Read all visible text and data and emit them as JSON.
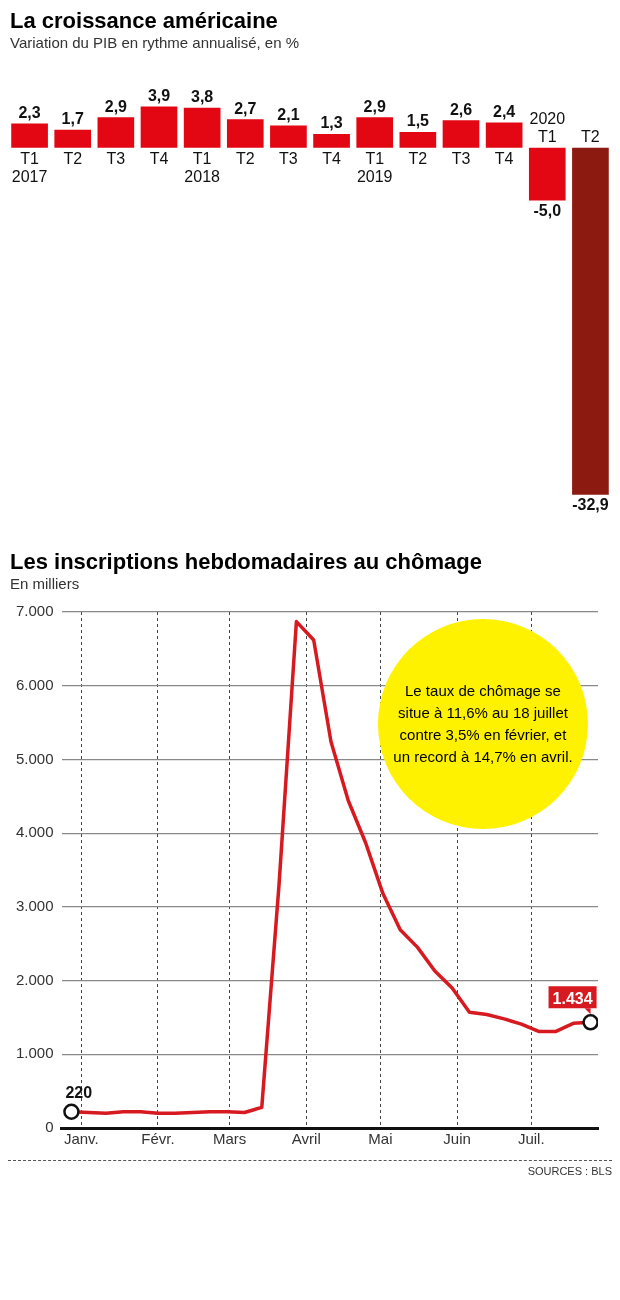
{
  "chart_data": [
    {
      "type": "bar",
      "title": "La croissance américaine",
      "subtitle": "Variation du PIB en rythme annualisé, en %",
      "categories": [
        "T1 2017",
        "T2",
        "T3",
        "T4",
        "T1 2018",
        "T2",
        "T3",
        "T4",
        "T1 2019",
        "T2",
        "T3",
        "T4",
        "2020 T1",
        "T2"
      ],
      "values": [
        2.3,
        1.7,
        2.9,
        3.9,
        3.8,
        2.7,
        2.1,
        1.3,
        2.9,
        1.5,
        2.6,
        2.4,
        -5.0,
        -32.9
      ],
      "colors": [
        "#e30613",
        "#e30613",
        "#e30613",
        "#e30613",
        "#e30613",
        "#e30613",
        "#e30613",
        "#e30613",
        "#e30613",
        "#e30613",
        "#e30613",
        "#e30613",
        "#e30613",
        "#8c1a10"
      ],
      "value_labels": [
        "2,3",
        "1,7",
        "2,9",
        "3,9",
        "3,8",
        "2,7",
        "2,1",
        "1,3",
        "2,9",
        "1,5",
        "2,6",
        "2,4",
        "-5,0",
        "-32,9"
      ]
    },
    {
      "type": "line",
      "title": "Les inscriptions hebdomadaires au chômage",
      "subtitle": "En milliers",
      "x": [
        "2019-12-28",
        "2020-01-04",
        "2020-01-11",
        "2020-01-18",
        "2020-01-25",
        "2020-02-01",
        "2020-02-08",
        "2020-02-15",
        "2020-02-22",
        "2020-02-29",
        "2020-03-07",
        "2020-03-14",
        "2020-03-21",
        "2020-03-28",
        "2020-04-04",
        "2020-04-11",
        "2020-04-18",
        "2020-04-25",
        "2020-05-02",
        "2020-05-09",
        "2020-05-16",
        "2020-05-23",
        "2020-05-30",
        "2020-06-06",
        "2020-06-13",
        "2020-06-20",
        "2020-06-27",
        "2020-07-04",
        "2020-07-11",
        "2020-07-18",
        "2020-07-25"
      ],
      "series": [
        {
          "color": "#d71920",
          "values": [
            220,
            210,
            200,
            220,
            220,
            200,
            200,
            210,
            220,
            220,
            210,
            280,
            3310,
            6870,
            6620,
            5240,
            4440,
            3870,
            3180,
            2690,
            2450,
            2130,
            1900,
            1570,
            1540,
            1480,
            1410,
            1310,
            1310,
            1420,
            1434
          ],
          "value_labels": [
            "220",
            null,
            null,
            null,
            null,
            null,
            null,
            null,
            null,
            null,
            null,
            null,
            null,
            null,
            null,
            null,
            null,
            null,
            null,
            null,
            null,
            null,
            null,
            null,
            null,
            null,
            null,
            null,
            null,
            null,
            "1.434"
          ]
        }
      ],
      "xlim": [
        "2019-12-24",
        "2020-07-28"
      ],
      "xticks": [
        {
          "value": "2020-01-01",
          "label": "Janv."
        },
        {
          "value": "2020-02-01",
          "label": "Févr."
        },
        {
          "value": "2020-03-01",
          "label": "Mars"
        },
        {
          "value": "2020-04-01",
          "label": "Avril"
        },
        {
          "value": "2020-05-01",
          "label": "Mai"
        },
        {
          "value": "2020-06-01",
          "label": "Juin"
        },
        {
          "value": "2020-07-01",
          "label": "Juil."
        }
      ],
      "ylim": [
        0,
        7000
      ],
      "yticks": [
        0,
        {
          "value": 1000,
          "label": "1.000"
        },
        {
          "value": 2000,
          "label": "2.000"
        },
        {
          "value": 3000,
          "label": "3.000"
        },
        {
          "value": 4000,
          "label": "4.000"
        },
        {
          "value": 5000,
          "label": "5.000"
        },
        {
          "value": 6000,
          "label": "6.000"
        },
        {
          "value": 7000,
          "label": "7.000"
        }
      ],
      "grid": true,
      "line_style": "solid",
      "annotations": [
        "Le taux de chômage se situe à 11,6% au 18 juillet contre 3,5% en février, et un record à 14,7% en avril.",
        "SOURCES : BLS"
      ]
    }
  ]
}
